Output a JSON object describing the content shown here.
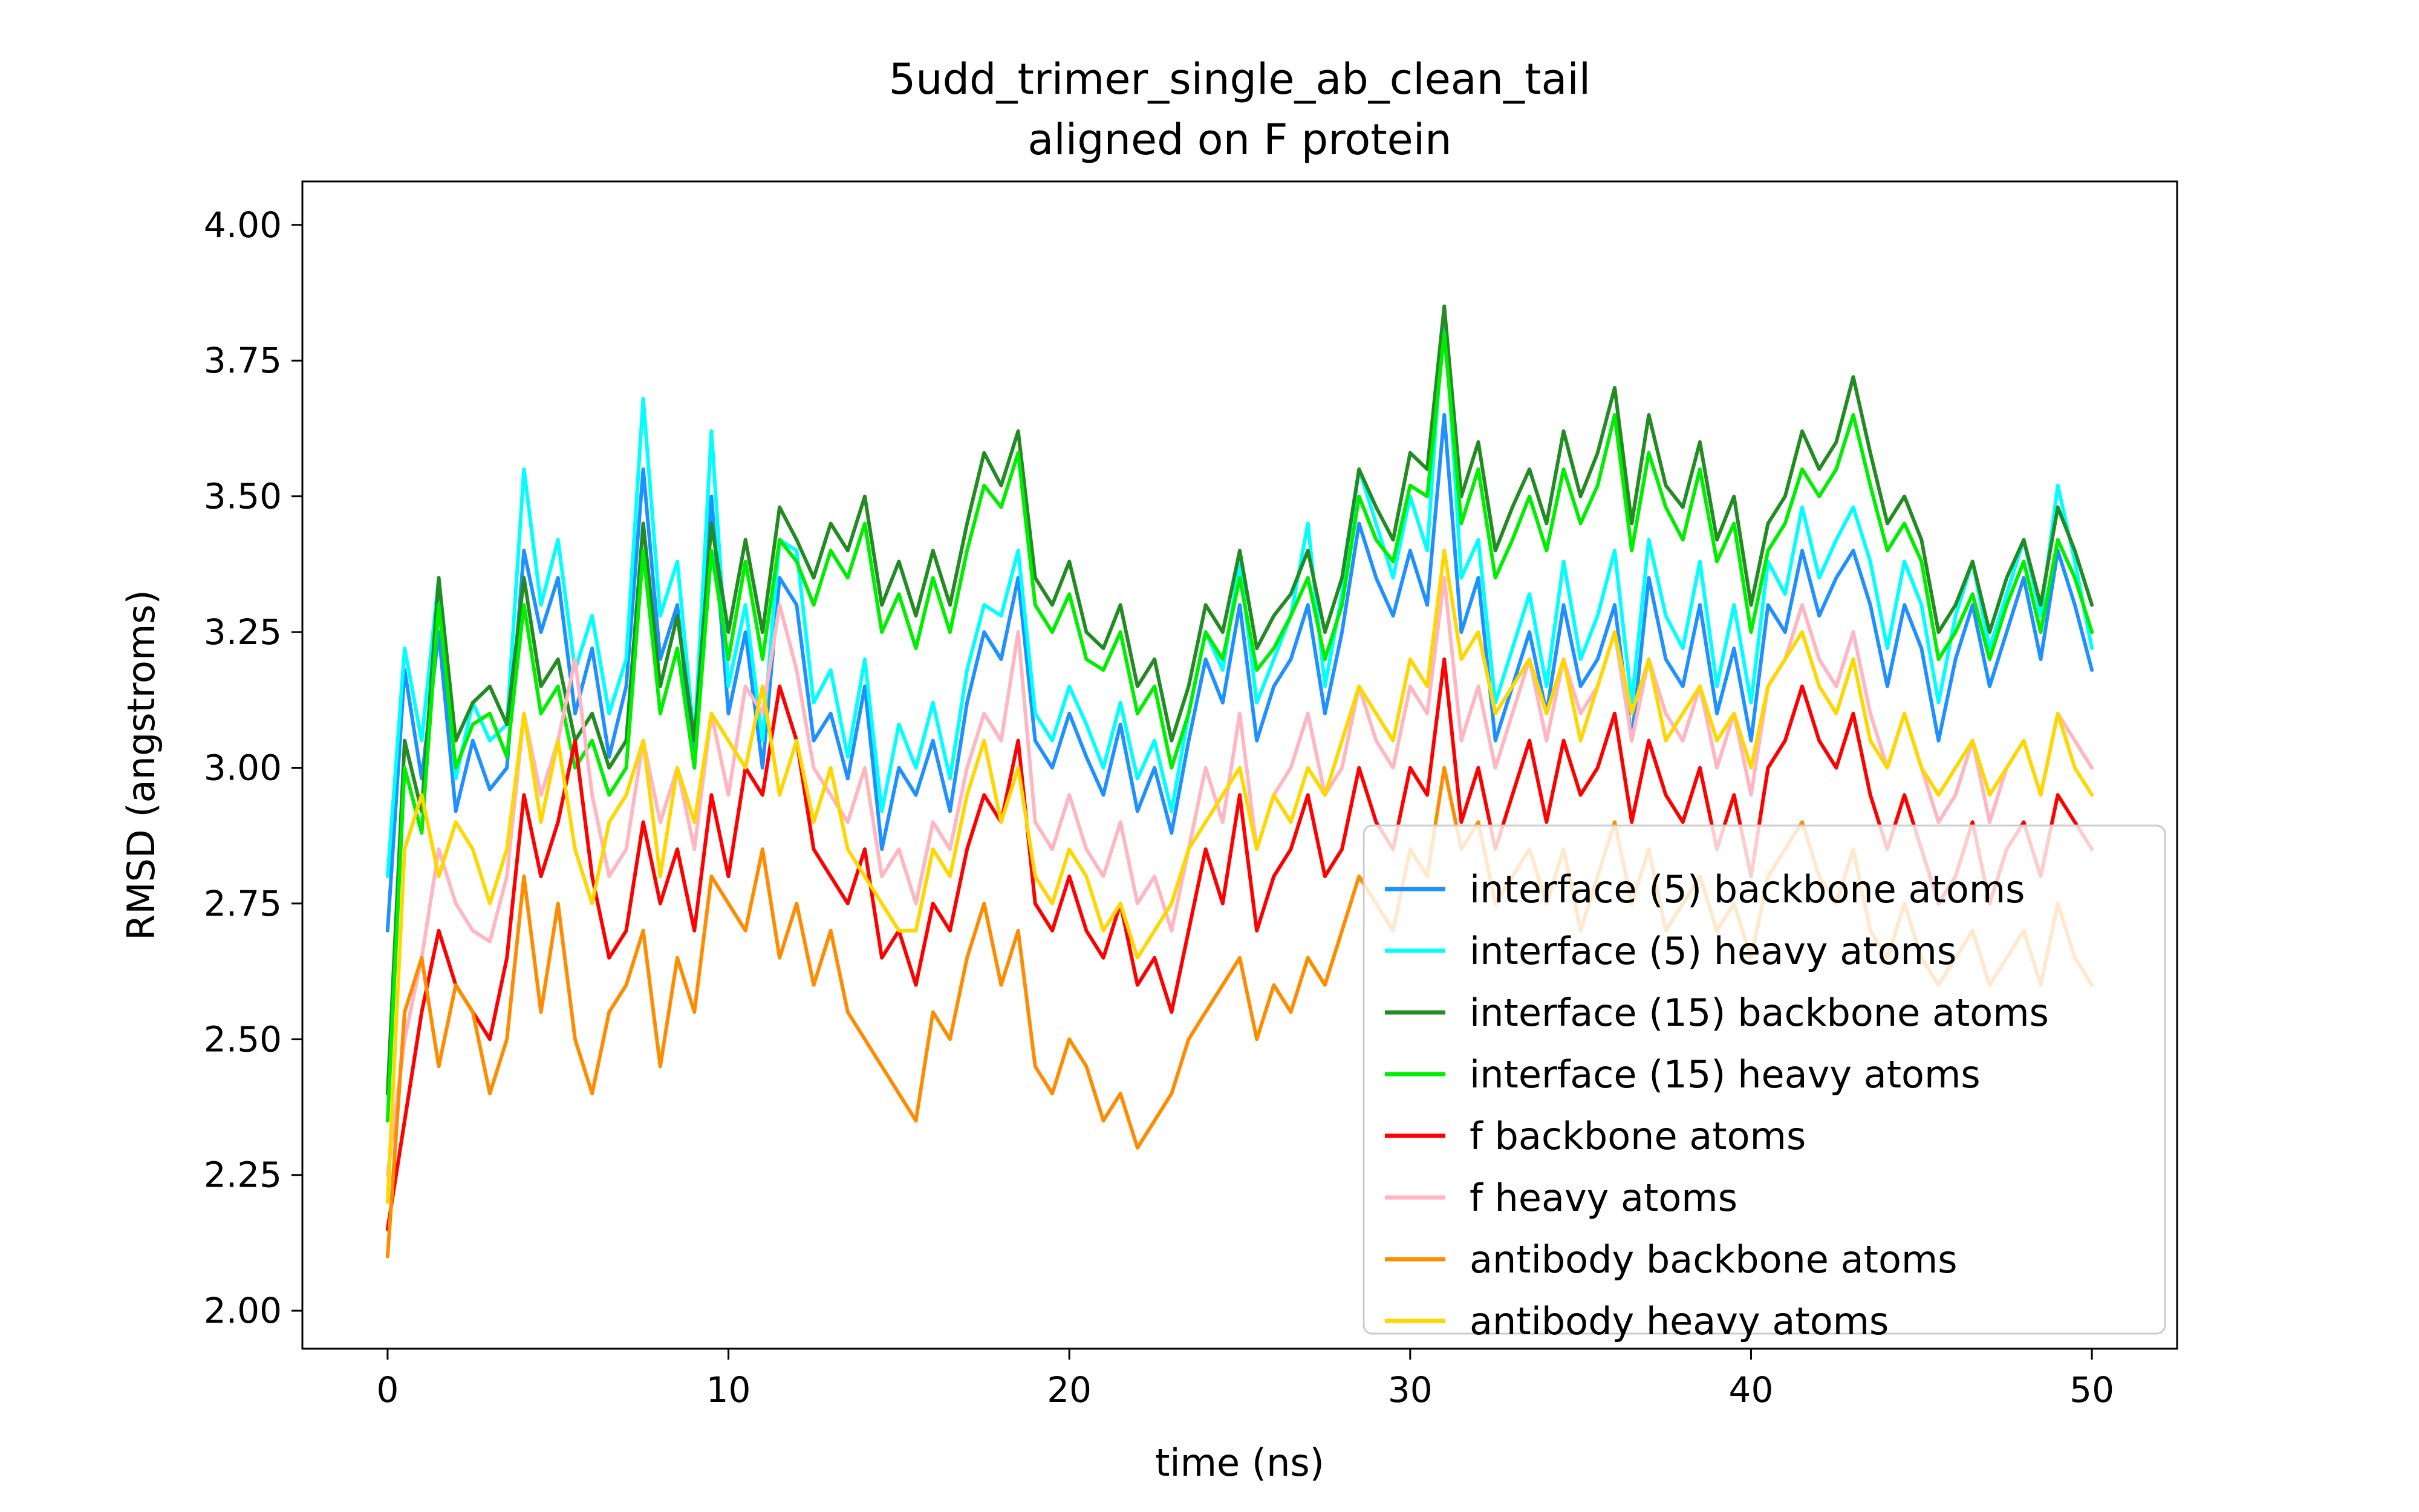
{
  "chart_data": {
    "type": "line",
    "title": "5udd_trimer_single_ab_clean_tail",
    "subtitle": "aligned on F protein",
    "xlabel": "time (ns)",
    "ylabel": "RMSD (angstroms)",
    "xlim": [
      -2.5,
      52.5
    ],
    "ylim": [
      1.93,
      4.08
    ],
    "xticks": [
      0,
      10,
      20,
      30,
      40,
      50
    ],
    "xtick_labels": [
      "0",
      "10",
      "20",
      "30",
      "40",
      "50"
    ],
    "yticks": [
      2.0,
      2.25,
      2.5,
      2.75,
      3.0,
      3.25,
      3.5,
      3.75,
      4.0
    ],
    "ytick_labels": [
      "2.00",
      "2.25",
      "2.50",
      "2.75",
      "3.00",
      "3.25",
      "3.50",
      "3.75",
      "4.00"
    ],
    "grid": false,
    "legend_position": "lower-right",
    "x": [
      0,
      0.5,
      1,
      1.5,
      2,
      2.5,
      3,
      3.5,
      4,
      4.5,
      5,
      5.5,
      6,
      6.5,
      7,
      7.5,
      8,
      8.5,
      9,
      9.5,
      10,
      10.5,
      11,
      11.5,
      12,
      12.5,
      13,
      13.5,
      14,
      14.5,
      15,
      15.5,
      16,
      16.5,
      17,
      17.5,
      18,
      18.5,
      19,
      19.5,
      20,
      20.5,
      21,
      21.5,
      22,
      22.5,
      23,
      23.5,
      24,
      24.5,
      25,
      25.5,
      26,
      26.5,
      27,
      27.5,
      28,
      28.5,
      29,
      29.5,
      30,
      30.5,
      31,
      31.5,
      32,
      32.5,
      33,
      33.5,
      34,
      34.5,
      35,
      35.5,
      36,
      36.5,
      37,
      37.5,
      38,
      38.5,
      39,
      39.5,
      40,
      40.5,
      41,
      41.5,
      42,
      42.5,
      43,
      43.5,
      44,
      44.5,
      45,
      45.5,
      46,
      46.5,
      47,
      47.5,
      48,
      48.5,
      49,
      49.5,
      50
    ],
    "series": [
      {
        "name": "interface (5) backbone atoms",
        "color": "#1e90ff",
        "values": [
          2.7,
          3.18,
          2.98,
          3.25,
          2.92,
          3.05,
          2.96,
          3.0,
          3.4,
          3.25,
          3.35,
          3.1,
          3.22,
          3.02,
          3.15,
          3.55,
          3.2,
          3.3,
          3.0,
          3.5,
          3.1,
          3.25,
          3.0,
          3.35,
          3.3,
          3.05,
          3.1,
          2.98,
          3.15,
          2.85,
          3.0,
          2.95,
          3.05,
          2.92,
          3.12,
          3.25,
          3.2,
          3.35,
          3.05,
          3.0,
          3.1,
          3.02,
          2.95,
          3.08,
          2.92,
          3.0,
          2.88,
          3.05,
          3.2,
          3.12,
          3.3,
          3.05,
          3.15,
          3.2,
          3.3,
          3.1,
          3.25,
          3.45,
          3.35,
          3.28,
          3.4,
          3.3,
          3.65,
          3.25,
          3.35,
          3.05,
          3.15,
          3.25,
          3.1,
          3.3,
          3.15,
          3.2,
          3.3,
          3.05,
          3.35,
          3.2,
          3.15,
          3.3,
          3.1,
          3.22,
          3.05,
          3.3,
          3.25,
          3.4,
          3.28,
          3.35,
          3.4,
          3.3,
          3.15,
          3.3,
          3.22,
          3.05,
          3.2,
          3.3,
          3.15,
          3.25,
          3.35,
          3.2,
          3.4,
          3.3,
          3.18
        ]
      },
      {
        "name": "interface (5) heavy atoms",
        "color": "#00ffff",
        "values": [
          2.8,
          3.22,
          3.05,
          3.35,
          2.98,
          3.12,
          3.05,
          3.08,
          3.55,
          3.3,
          3.42,
          3.18,
          3.28,
          3.1,
          3.2,
          3.68,
          3.28,
          3.38,
          3.05,
          3.62,
          3.15,
          3.3,
          3.05,
          3.42,
          3.4,
          3.12,
          3.18,
          3.02,
          3.2,
          2.92,
          3.08,
          3.0,
          3.12,
          2.98,
          3.18,
          3.3,
          3.28,
          3.4,
          3.1,
          3.05,
          3.15,
          3.08,
          3.0,
          3.12,
          2.98,
          3.05,
          2.92,
          3.1,
          3.25,
          3.18,
          3.38,
          3.12,
          3.2,
          3.28,
          3.45,
          3.15,
          3.32,
          3.55,
          3.45,
          3.35,
          3.5,
          3.4,
          3.85,
          3.35,
          3.42,
          3.12,
          3.22,
          3.32,
          3.15,
          3.38,
          3.2,
          3.28,
          3.4,
          3.12,
          3.42,
          3.28,
          3.22,
          3.38,
          3.15,
          3.3,
          3.12,
          3.38,
          3.32,
          3.48,
          3.35,
          3.42,
          3.48,
          3.38,
          3.22,
          3.38,
          3.3,
          3.12,
          3.28,
          3.38,
          3.22,
          3.32,
          3.42,
          3.28,
          3.52,
          3.38,
          3.22
        ]
      },
      {
        "name": "interface (15) backbone atoms",
        "color": "#228b22",
        "values": [
          2.4,
          3.05,
          2.92,
          3.35,
          3.05,
          3.12,
          3.15,
          3.08,
          3.35,
          3.15,
          3.2,
          3.05,
          3.1,
          3.0,
          3.05,
          3.45,
          3.15,
          3.28,
          3.05,
          3.45,
          3.25,
          3.42,
          3.25,
          3.48,
          3.42,
          3.35,
          3.45,
          3.4,
          3.5,
          3.3,
          3.38,
          3.28,
          3.4,
          3.3,
          3.45,
          3.58,
          3.52,
          3.62,
          3.35,
          3.3,
          3.38,
          3.25,
          3.22,
          3.3,
          3.15,
          3.2,
          3.05,
          3.15,
          3.3,
          3.25,
          3.4,
          3.22,
          3.28,
          3.32,
          3.4,
          3.25,
          3.35,
          3.55,
          3.48,
          3.42,
          3.58,
          3.55,
          3.85,
          3.5,
          3.6,
          3.4,
          3.48,
          3.55,
          3.45,
          3.62,
          3.5,
          3.58,
          3.7,
          3.45,
          3.65,
          3.52,
          3.48,
          3.6,
          3.42,
          3.5,
          3.3,
          3.45,
          3.5,
          3.62,
          3.55,
          3.6,
          3.72,
          3.58,
          3.45,
          3.5,
          3.42,
          3.25,
          3.3,
          3.38,
          3.25,
          3.35,
          3.42,
          3.3,
          3.48,
          3.4,
          3.3
        ]
      },
      {
        "name": "interface (15) heavy atoms",
        "color": "#00ee00",
        "values": [
          2.35,
          3.0,
          2.88,
          3.3,
          3.0,
          3.08,
          3.1,
          3.02,
          3.3,
          3.1,
          3.15,
          3.0,
          3.05,
          2.95,
          3.0,
          3.4,
          3.1,
          3.22,
          3.0,
          3.4,
          3.2,
          3.38,
          3.2,
          3.42,
          3.38,
          3.3,
          3.4,
          3.35,
          3.45,
          3.25,
          3.32,
          3.22,
          3.35,
          3.25,
          3.4,
          3.52,
          3.48,
          3.58,
          3.3,
          3.25,
          3.32,
          3.2,
          3.18,
          3.25,
          3.1,
          3.15,
          3.0,
          3.1,
          3.25,
          3.2,
          3.35,
          3.18,
          3.22,
          3.28,
          3.35,
          3.2,
          3.3,
          3.5,
          3.42,
          3.38,
          3.52,
          3.5,
          3.8,
          3.45,
          3.55,
          3.35,
          3.42,
          3.5,
          3.4,
          3.55,
          3.45,
          3.52,
          3.65,
          3.4,
          3.58,
          3.48,
          3.42,
          3.55,
          3.38,
          3.45,
          3.25,
          3.4,
          3.45,
          3.55,
          3.5,
          3.55,
          3.65,
          3.52,
          3.4,
          3.45,
          3.38,
          3.2,
          3.25,
          3.32,
          3.2,
          3.3,
          3.38,
          3.25,
          3.42,
          3.35,
          3.25
        ]
      },
      {
        "name": "f backbone atoms",
        "color": "#ff0000",
        "values": [
          2.15,
          2.35,
          2.55,
          2.7,
          2.6,
          2.55,
          2.5,
          2.65,
          2.95,
          2.8,
          2.9,
          3.05,
          2.8,
          2.65,
          2.7,
          2.9,
          2.75,
          2.85,
          2.7,
          2.95,
          2.8,
          3.0,
          2.95,
          3.15,
          3.05,
          2.85,
          2.8,
          2.75,
          2.85,
          2.65,
          2.7,
          2.6,
          2.75,
          2.7,
          2.85,
          2.95,
          2.9,
          3.05,
          2.75,
          2.7,
          2.8,
          2.7,
          2.65,
          2.75,
          2.6,
          2.65,
          2.55,
          2.7,
          2.85,
          2.75,
          2.95,
          2.7,
          2.8,
          2.85,
          2.95,
          2.8,
          2.85,
          3.0,
          2.9,
          2.85,
          3.0,
          2.95,
          3.2,
          2.9,
          3.0,
          2.85,
          2.95,
          3.05,
          2.9,
          3.05,
          2.95,
          3.0,
          3.1,
          2.9,
          3.05,
          2.95,
          2.9,
          3.0,
          2.85,
          2.95,
          2.8,
          3.0,
          3.05,
          3.15,
          3.05,
          3.0,
          3.1,
          2.95,
          2.85,
          2.95,
          2.85,
          2.75,
          2.8,
          2.9,
          2.75,
          2.85,
          2.9,
          2.8,
          2.95,
          2.9,
          2.85
        ]
      },
      {
        "name": "f heavy atoms",
        "color": "#ffb6c1",
        "values": [
          2.25,
          2.5,
          2.65,
          2.85,
          2.75,
          2.7,
          2.68,
          2.8,
          3.1,
          2.95,
          3.05,
          3.2,
          2.95,
          2.8,
          2.85,
          3.05,
          2.9,
          3.0,
          2.85,
          3.1,
          2.95,
          3.15,
          3.1,
          3.3,
          3.18,
          3.0,
          2.95,
          2.9,
          3.0,
          2.8,
          2.85,
          2.75,
          2.9,
          2.85,
          3.0,
          3.1,
          3.05,
          3.25,
          2.9,
          2.85,
          2.95,
          2.85,
          2.8,
          2.9,
          2.75,
          2.8,
          2.7,
          2.85,
          3.0,
          2.9,
          3.1,
          2.85,
          2.95,
          3.0,
          3.1,
          2.95,
          3.0,
          3.15,
          3.05,
          3.0,
          3.15,
          3.1,
          3.35,
          3.05,
          3.15,
          3.0,
          3.1,
          3.2,
          3.05,
          3.2,
          3.1,
          3.15,
          3.25,
          3.05,
          3.2,
          3.1,
          3.05,
          3.15,
          3.0,
          3.1,
          2.95,
          3.15,
          3.2,
          3.3,
          3.2,
          3.15,
          3.25,
          3.1,
          3.0,
          3.1,
          3.0,
          2.9,
          2.95,
          3.05,
          2.9,
          3.0,
          3.05,
          2.95,
          3.1,
          3.05,
          3.0
        ]
      },
      {
        "name": "antibody backbone atoms",
        "color": "#ff8c00",
        "values": [
          2.1,
          2.55,
          2.65,
          2.45,
          2.6,
          2.55,
          2.4,
          2.5,
          2.8,
          2.55,
          2.75,
          2.5,
          2.4,
          2.55,
          2.6,
          2.7,
          2.45,
          2.65,
          2.55,
          2.8,
          2.75,
          2.7,
          2.85,
          2.65,
          2.75,
          2.6,
          2.7,
          2.55,
          2.5,
          2.45,
          2.4,
          2.35,
          2.55,
          2.5,
          2.65,
          2.75,
          2.6,
          2.7,
          2.45,
          2.4,
          2.5,
          2.45,
          2.35,
          2.4,
          2.3,
          2.35,
          2.4,
          2.5,
          2.55,
          2.6,
          2.65,
          2.5,
          2.6,
          2.55,
          2.65,
          2.6,
          2.7,
          2.8,
          2.75,
          2.7,
          2.85,
          2.8,
          3.0,
          2.85,
          2.9,
          2.75,
          2.8,
          2.85,
          2.75,
          2.85,
          2.7,
          2.8,
          2.9,
          2.75,
          2.85,
          2.7,
          2.75,
          2.8,
          2.7,
          2.75,
          2.65,
          2.8,
          2.85,
          2.9,
          2.8,
          2.75,
          2.85,
          2.7,
          2.65,
          2.75,
          2.65,
          2.6,
          2.65,
          2.7,
          2.6,
          2.65,
          2.7,
          2.6,
          2.75,
          2.65,
          2.6
        ]
      },
      {
        "name": "antibody heavy atoms",
        "color": "#ffd700",
        "values": [
          2.2,
          2.85,
          2.95,
          2.8,
          2.9,
          2.85,
          2.75,
          2.85,
          3.1,
          2.9,
          3.05,
          2.85,
          2.75,
          2.9,
          2.95,
          3.05,
          2.8,
          3.0,
          2.9,
          3.1,
          3.05,
          3.0,
          3.15,
          2.95,
          3.05,
          2.9,
          3.0,
          2.85,
          2.8,
          2.75,
          2.7,
          2.7,
          2.85,
          2.8,
          2.95,
          3.05,
          2.9,
          3.0,
          2.8,
          2.75,
          2.85,
          2.8,
          2.7,
          2.75,
          2.65,
          2.7,
          2.75,
          2.85,
          2.9,
          2.95,
          3.0,
          2.85,
          2.95,
          2.9,
          3.0,
          2.95,
          3.05,
          3.15,
          3.1,
          3.05,
          3.2,
          3.15,
          3.4,
          3.2,
          3.25,
          3.1,
          3.15,
          3.2,
          3.1,
          3.2,
          3.05,
          3.15,
          3.25,
          3.1,
          3.2,
          3.05,
          3.1,
          3.15,
          3.05,
          3.1,
          3.0,
          3.15,
          3.2,
          3.25,
          3.15,
          3.1,
          3.2,
          3.05,
          3.0,
          3.1,
          3.0,
          2.95,
          3.0,
          3.05,
          2.95,
          3.0,
          3.05,
          2.95,
          3.1,
          3.0,
          2.95
        ]
      }
    ]
  }
}
